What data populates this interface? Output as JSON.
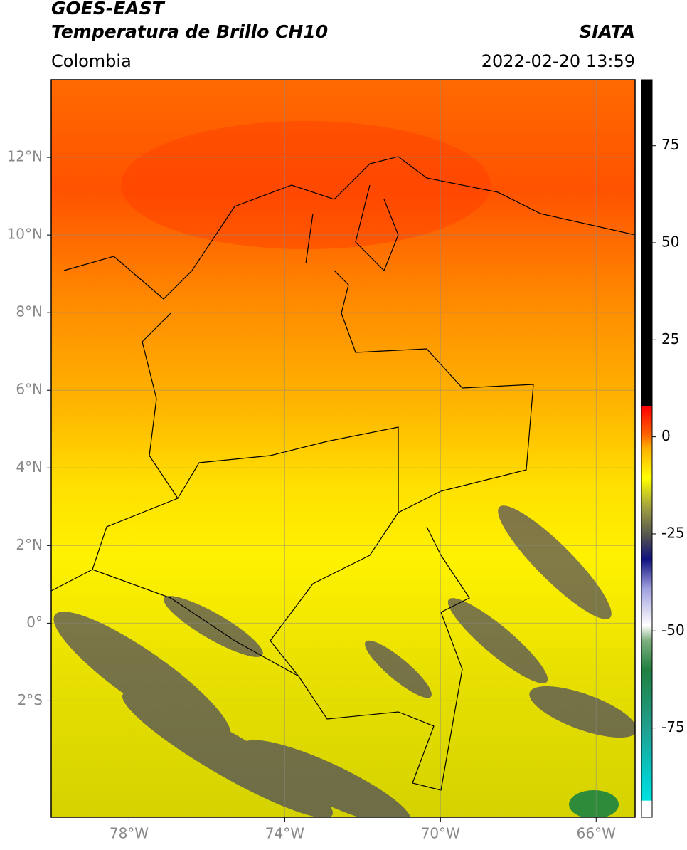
{
  "header": {
    "title": "GOES-EAST",
    "subtitle": "Temperatura de Brillo CH10",
    "source": "SIATA",
    "region": "Colombia",
    "datetime": "2022-02-20 13:59"
  },
  "map": {
    "xlim": [
      -80,
      -65
    ],
    "ylim": [
      -5,
      14
    ],
    "grid": true,
    "xticks": [
      {
        "value": -78,
        "label": "78°W"
      },
      {
        "value": -74,
        "label": "74°W"
      },
      {
        "value": -70,
        "label": "70°W"
      },
      {
        "value": -66,
        "label": "66°W"
      }
    ],
    "yticks": [
      {
        "value": 12,
        "label": "12°N"
      },
      {
        "value": 10,
        "label": "10°N"
      },
      {
        "value": 8,
        "label": "8°N"
      },
      {
        "value": 6,
        "label": "6°N"
      },
      {
        "value": 4,
        "label": "4°N"
      },
      {
        "value": 2,
        "label": "2°N"
      },
      {
        "value": 0,
        "label": "0°"
      },
      {
        "value": -2,
        "label": "2°S"
      }
    ]
  },
  "colorbar": {
    "lim": [
      -98,
      92
    ],
    "ticks": [
      75,
      50,
      25,
      0,
      -25,
      -50,
      -75
    ]
  }
}
